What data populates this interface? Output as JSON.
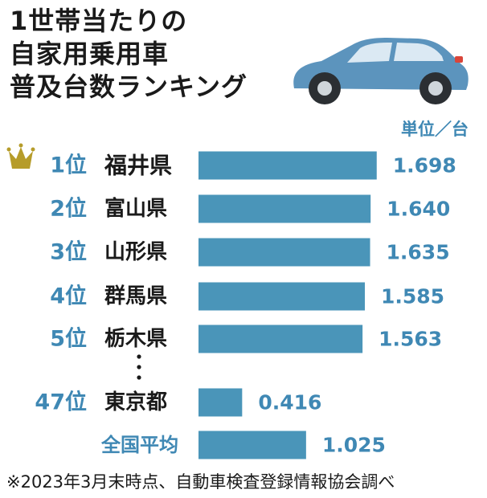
{
  "title_lines": [
    "1世帯当たりの",
    "自家用乗用車",
    "普及台数ランキング"
  ],
  "unit_label": "単位／台",
  "footnote": "※2023年3月末時点、自動車検査登録情報協会調べ",
  "colors": {
    "bar": "#4a95b9",
    "rank": "#3f88b4",
    "text": "#1a1a1a",
    "crown": "#b69c2a",
    "car": "#5c94bd"
  },
  "chart_data": {
    "type": "bar",
    "orientation": "horizontal",
    "unit": "台",
    "categories": [
      {
        "rank": "1位",
        "name": "福井県",
        "value": 1.698,
        "label": "1.698",
        "highlight": true
      },
      {
        "rank": "2位",
        "name": "富山県",
        "value": 1.64,
        "label": "1.640"
      },
      {
        "rank": "3位",
        "name": "山形県",
        "value": 1.635,
        "label": "1.635"
      },
      {
        "rank": "4位",
        "name": "群馬県",
        "value": 1.585,
        "label": "1.585"
      },
      {
        "rank": "5位",
        "name": "栃木県",
        "value": 1.563,
        "label": "1.563"
      },
      {
        "rank": "47位",
        "name": "東京都",
        "value": 0.416,
        "label": "0.416"
      },
      {
        "rank": "",
        "name": "全国平均",
        "value": 1.025,
        "label": "1.025",
        "average": true
      }
    ],
    "xlim": [
      0,
      1.8
    ]
  }
}
